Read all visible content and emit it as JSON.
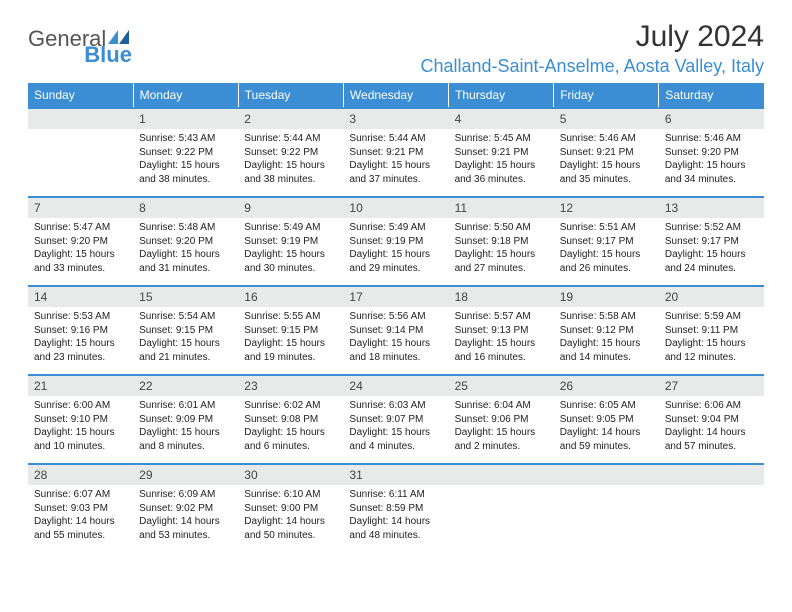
{
  "logo": {
    "text1": "General",
    "text2": "Blue"
  },
  "title": "July 2024",
  "location": "Challand-Saint-Anselme, Aosta Valley, Italy",
  "colors": {
    "header_bg": "#3b8dd4",
    "header_text": "#ffffff",
    "daynum_bg": "#e8eaea",
    "border": "#3b8dd4",
    "text": "#222222"
  },
  "dayNames": [
    "Sunday",
    "Monday",
    "Tuesday",
    "Wednesday",
    "Thursday",
    "Friday",
    "Saturday"
  ],
  "weeks": [
    {
      "nums": [
        "",
        "1",
        "2",
        "3",
        "4",
        "5",
        "6"
      ],
      "cells": [
        "",
        "Sunrise: 5:43 AM\nSunset: 9:22 PM\nDaylight: 15 hours and 38 minutes.",
        "Sunrise: 5:44 AM\nSunset: 9:22 PM\nDaylight: 15 hours and 38 minutes.",
        "Sunrise: 5:44 AM\nSunset: 9:21 PM\nDaylight: 15 hours and 37 minutes.",
        "Sunrise: 5:45 AM\nSunset: 9:21 PM\nDaylight: 15 hours and 36 minutes.",
        "Sunrise: 5:46 AM\nSunset: 9:21 PM\nDaylight: 15 hours and 35 minutes.",
        "Sunrise: 5:46 AM\nSunset: 9:20 PM\nDaylight: 15 hours and 34 minutes."
      ]
    },
    {
      "nums": [
        "7",
        "8",
        "9",
        "10",
        "11",
        "12",
        "13"
      ],
      "cells": [
        "Sunrise: 5:47 AM\nSunset: 9:20 PM\nDaylight: 15 hours and 33 minutes.",
        "Sunrise: 5:48 AM\nSunset: 9:20 PM\nDaylight: 15 hours and 31 minutes.",
        "Sunrise: 5:49 AM\nSunset: 9:19 PM\nDaylight: 15 hours and 30 minutes.",
        "Sunrise: 5:49 AM\nSunset: 9:19 PM\nDaylight: 15 hours and 29 minutes.",
        "Sunrise: 5:50 AM\nSunset: 9:18 PM\nDaylight: 15 hours and 27 minutes.",
        "Sunrise: 5:51 AM\nSunset: 9:17 PM\nDaylight: 15 hours and 26 minutes.",
        "Sunrise: 5:52 AM\nSunset: 9:17 PM\nDaylight: 15 hours and 24 minutes."
      ]
    },
    {
      "nums": [
        "14",
        "15",
        "16",
        "17",
        "18",
        "19",
        "20"
      ],
      "cells": [
        "Sunrise: 5:53 AM\nSunset: 9:16 PM\nDaylight: 15 hours and 23 minutes.",
        "Sunrise: 5:54 AM\nSunset: 9:15 PM\nDaylight: 15 hours and 21 minutes.",
        "Sunrise: 5:55 AM\nSunset: 9:15 PM\nDaylight: 15 hours and 19 minutes.",
        "Sunrise: 5:56 AM\nSunset: 9:14 PM\nDaylight: 15 hours and 18 minutes.",
        "Sunrise: 5:57 AM\nSunset: 9:13 PM\nDaylight: 15 hours and 16 minutes.",
        "Sunrise: 5:58 AM\nSunset: 9:12 PM\nDaylight: 15 hours and 14 minutes.",
        "Sunrise: 5:59 AM\nSunset: 9:11 PM\nDaylight: 15 hours and 12 minutes."
      ]
    },
    {
      "nums": [
        "21",
        "22",
        "23",
        "24",
        "25",
        "26",
        "27"
      ],
      "cells": [
        "Sunrise: 6:00 AM\nSunset: 9:10 PM\nDaylight: 15 hours and 10 minutes.",
        "Sunrise: 6:01 AM\nSunset: 9:09 PM\nDaylight: 15 hours and 8 minutes.",
        "Sunrise: 6:02 AM\nSunset: 9:08 PM\nDaylight: 15 hours and 6 minutes.",
        "Sunrise: 6:03 AM\nSunset: 9:07 PM\nDaylight: 15 hours and 4 minutes.",
        "Sunrise: 6:04 AM\nSunset: 9:06 PM\nDaylight: 15 hours and 2 minutes.",
        "Sunrise: 6:05 AM\nSunset: 9:05 PM\nDaylight: 14 hours and 59 minutes.",
        "Sunrise: 6:06 AM\nSunset: 9:04 PM\nDaylight: 14 hours and 57 minutes."
      ]
    },
    {
      "nums": [
        "28",
        "29",
        "30",
        "31",
        "",
        "",
        ""
      ],
      "cells": [
        "Sunrise: 6:07 AM\nSunset: 9:03 PM\nDaylight: 14 hours and 55 minutes.",
        "Sunrise: 6:09 AM\nSunset: 9:02 PM\nDaylight: 14 hours and 53 minutes.",
        "Sunrise: 6:10 AM\nSunset: 9:00 PM\nDaylight: 14 hours and 50 minutes.",
        "Sunrise: 6:11 AM\nSunset: 8:59 PM\nDaylight: 14 hours and 48 minutes.",
        "",
        "",
        ""
      ]
    }
  ]
}
